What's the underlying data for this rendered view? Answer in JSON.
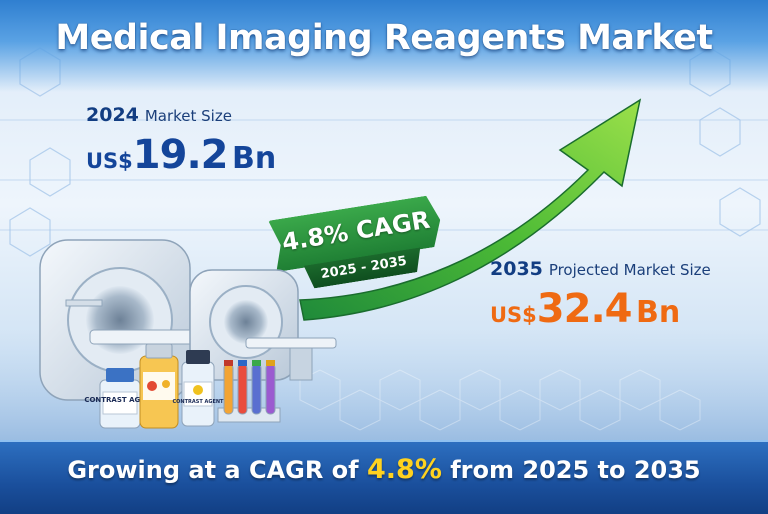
{
  "title": "Medical Imaging Reagents Market",
  "stat_2024": {
    "year": "2024",
    "label": "Market Size",
    "currency": "US$",
    "value": "19.2",
    "unit": "Bn"
  },
  "stat_2035": {
    "year": "2035",
    "label": "Projected Market Size",
    "currency": "US$",
    "value": "32.4",
    "unit": "Bn"
  },
  "cagr_tag": {
    "rate": "4.8% CAGR",
    "period": "2025 - 2035"
  },
  "bottom_banner": {
    "prefix": "Growing at a CAGR of",
    "rate": "4.8%",
    "suffix": "from 2025 to 2035"
  },
  "vials": {
    "left_label": "CONTRAST AGENT",
    "right_label": "CONTRAST AGENT"
  },
  "colors": {
    "title": "#ffffff",
    "value_2024": "#14459a",
    "value_2035": "#ef6a12",
    "arrow_green": "#3fb33b",
    "highlight": "#ffd21f",
    "banner": "#1a4f9c"
  },
  "icons": [
    "mri-scanner-icon",
    "ct-scanner-icon",
    "vial-icon",
    "test-tube-rack-icon",
    "growth-arrow-icon",
    "hexagon-pattern-icon"
  ]
}
